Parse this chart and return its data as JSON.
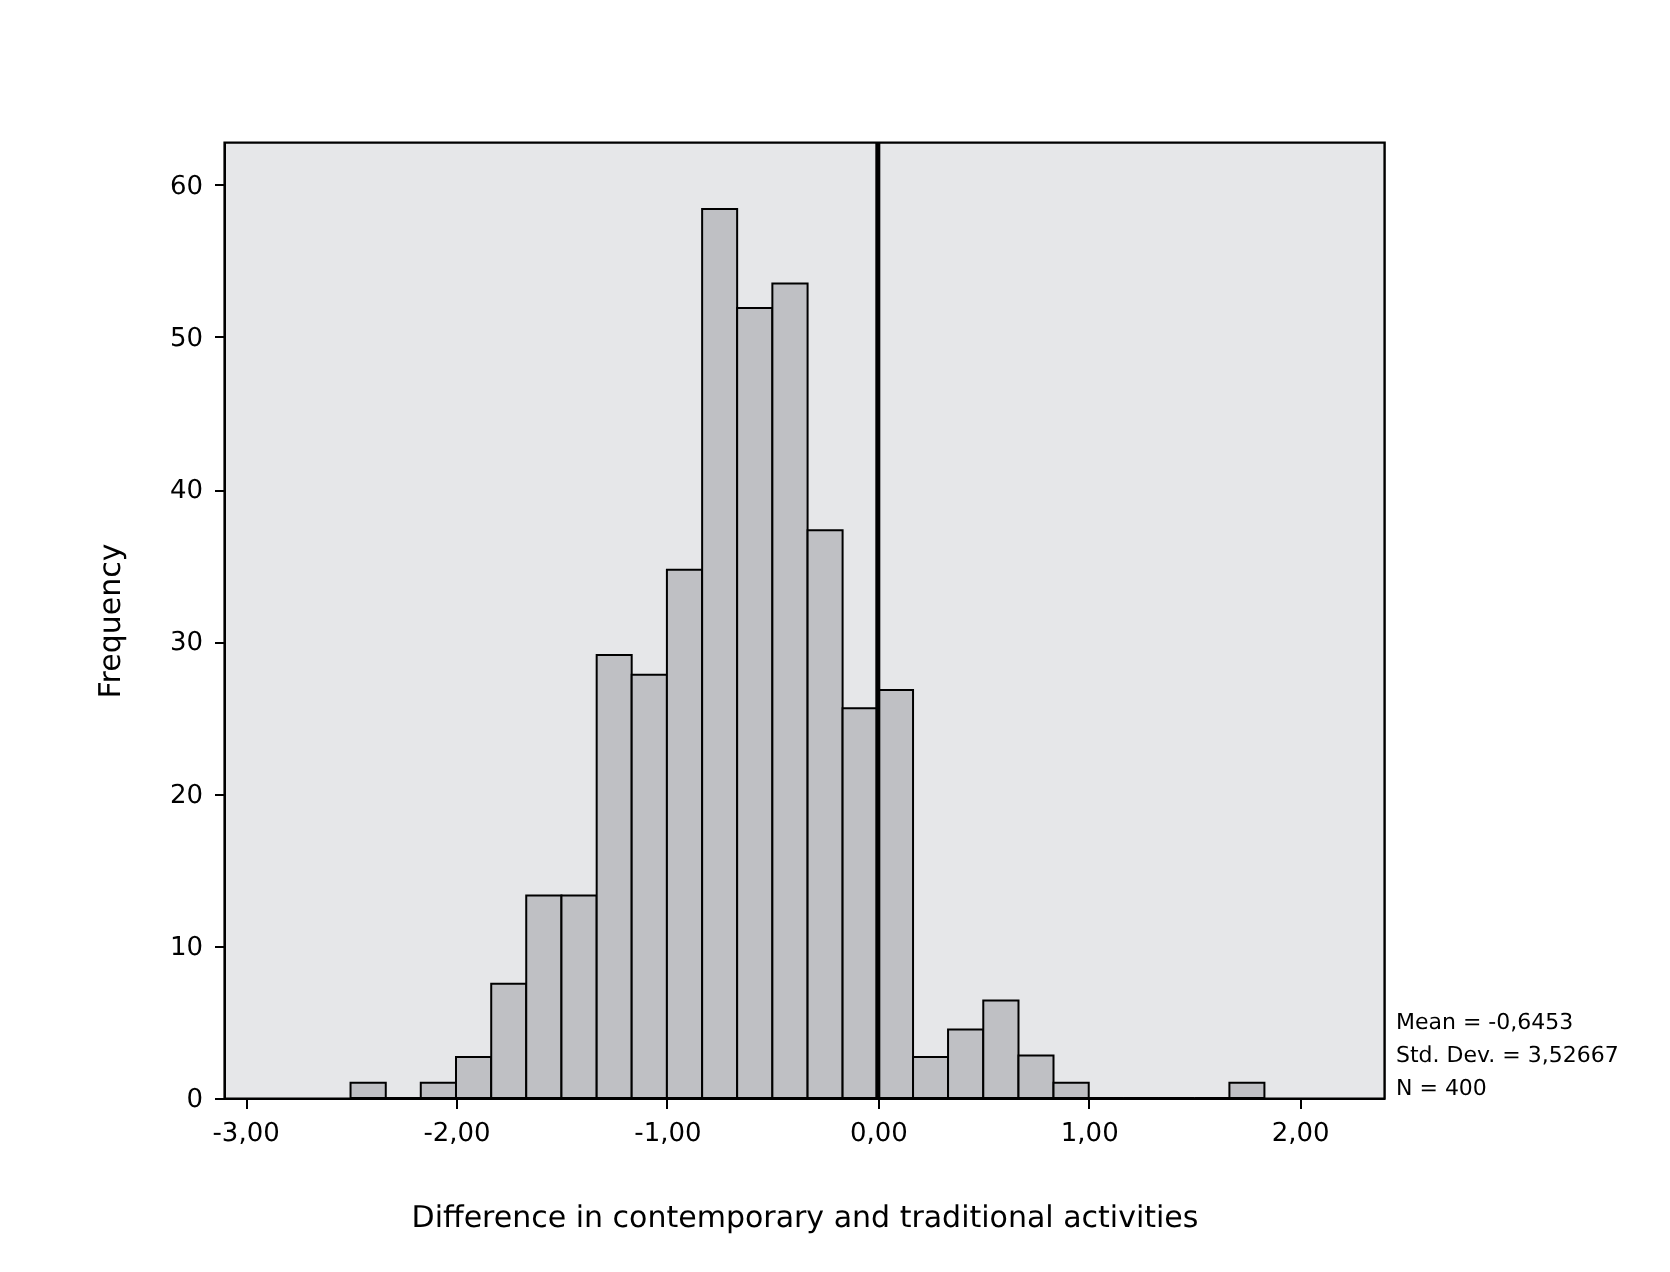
{
  "chart_data": {
    "type": "histogram",
    "xlabel": "Difference in contemporary and traditional activities",
    "ylabel": "Frequency",
    "bins": [
      -2.5,
      -2.333,
      -2.167,
      -2,
      -1.833,
      -1.667,
      -1.5,
      -1.333,
      -1.167,
      -1,
      -0.833,
      -0.667,
      -0.5,
      -0.333,
      -0.167,
      0,
      0.167,
      0.333,
      0.5,
      0.667,
      0.833,
      1,
      1.167,
      1.333,
      1.5,
      1.667,
      1.833
    ],
    "values": [
      1,
      0,
      1,
      2.7,
      7.5,
      13.3,
      13.3,
      29.1,
      27.8,
      34.7,
      58.4,
      51.9,
      53.5,
      37.3,
      25.6,
      26.8,
      2.7,
      4.5,
      6.4,
      2.8,
      1,
      0,
      0,
      0,
      0,
      1
    ],
    "color": "#bfc0c4",
    "xlim": [
      -3.1,
      2.4
    ],
    "ylim": [
      0,
      62.8
    ],
    "xticks": [
      {
        "value": -3,
        "label": "-3,00"
      },
      {
        "value": -2,
        "label": "-2,00"
      },
      {
        "value": -1,
        "label": "-1,00"
      },
      {
        "value": 0,
        "label": "0,00"
      },
      {
        "value": 1,
        "label": "1,00"
      },
      {
        "value": 2,
        "label": "2,00"
      }
    ],
    "yticks": [
      0,
      10,
      20,
      30,
      40,
      50,
      60
    ],
    "ref_lines": [
      {
        "axis": "x",
        "value": 0,
        "color": "#000000"
      }
    ],
    "annotations": [
      "Mean = -0,6453",
      "Std. Dev. = 3,52667",
      "N = 400"
    ],
    "grid": false
  }
}
